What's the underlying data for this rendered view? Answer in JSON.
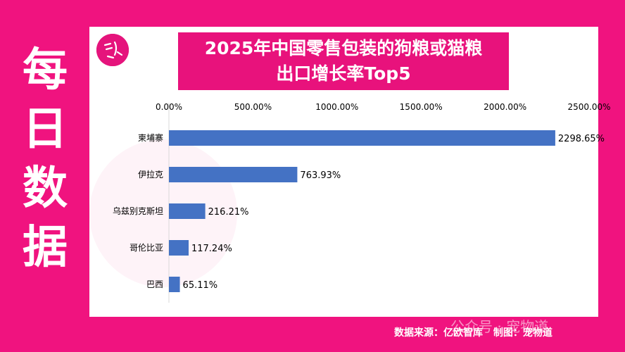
{
  "side_title": [
    "每",
    "日",
    "数",
    "据"
  ],
  "chart_data": {
    "type": "bar",
    "orientation": "horizontal",
    "title_lines": [
      "2025年中国零售包装的狗粮或猫粮",
      "出口增长率Top5"
    ],
    "categories": [
      "柬埔寨",
      "伊拉克",
      "乌兹别克斯坦",
      "哥伦比亚",
      "巴西"
    ],
    "values": [
      2298.65,
      763.93,
      216.21,
      117.24,
      65.11
    ],
    "value_labels": [
      "2298.65%",
      "763.93%",
      "216.21%",
      "117.24%",
      "65.11%"
    ],
    "x_ticks": [
      0,
      500,
      1000,
      1500,
      2000,
      2500
    ],
    "x_tick_labels": [
      "0.00%",
      "500.00%",
      "1000.00%",
      "1500.00%",
      "2000.00%",
      "2500.00%"
    ],
    "xlim": [
      0,
      2500
    ],
    "axis_position": "top",
    "grid": false,
    "bar_color": "#4472c4"
  },
  "footer": {
    "source": "数据来源：亿欧智库",
    "maker": "制图：宠物道"
  },
  "wechat_watermark": "公众号 · 宠物道"
}
